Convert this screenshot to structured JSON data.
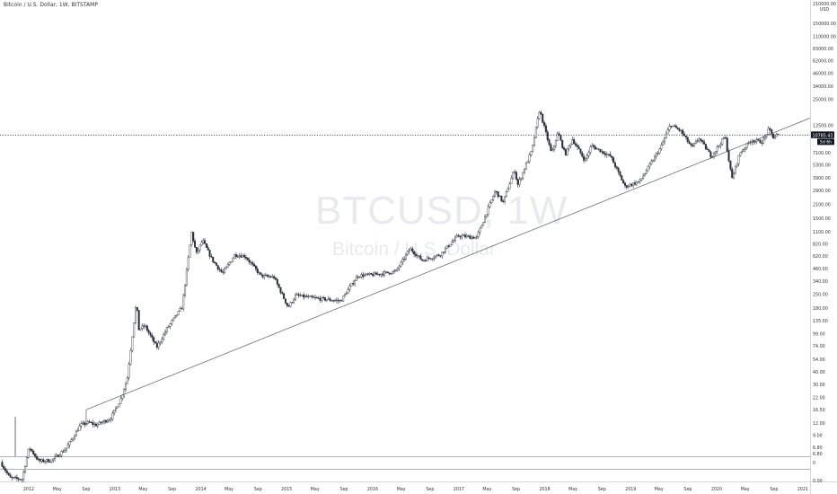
{
  "header": {
    "title": "Bitcoin / U.S. Dollar, 1W, BITSTAMP"
  },
  "watermark": {
    "symbol": "BTCUSD, 1W",
    "description": "Bitcoin / U.S. Dollar"
  },
  "colors": {
    "candle": "#2a2e39",
    "green_mark": "#26a69a",
    "price_label_bg": "#131722",
    "trendline": "#555b66",
    "hline": "#2a2e39"
  },
  "price_axis": {
    "top_labels": [
      "210000.00",
      "USD"
    ],
    "sub_panel_labels": [
      "6.80",
      "0",
      "0.00"
    ]
  },
  "price_label": {
    "value": "10785.43",
    "countdown": "5d 6h"
  },
  "chart_data": {
    "type": "candlestick",
    "title": "Bitcoin / U.S. Dollar, 1W, BITSTAMP",
    "scale": "log",
    "ylim": [
      5.5,
      230000
    ],
    "xrange": [
      "2011-09-01",
      "2021-02-01"
    ],
    "y_ticks": [
      150000,
      110000,
      83000,
      62000,
      46000,
      34000,
      25000,
      13500,
      7100,
      5300,
      3900,
      2900,
      2100,
      1500,
      1100,
      820,
      620,
      460,
      340,
      250,
      180,
      135,
      99,
      74,
      54,
      40,
      30,
      22,
      16.5,
      12,
      9,
      6.8
    ],
    "y_tick_labels": [
      "150000.00",
      "110000.00",
      "83000.00",
      "62000.00",
      "46000.00",
      "34000.00",
      "25000.00",
      "13500.00",
      "7100.00",
      "5300.00",
      "3900.00",
      "2900.00",
      "2100.00",
      "1500.00",
      "1100.00",
      "820.00",
      "620.00",
      "460.00",
      "340.00",
      "250.00",
      "180.00",
      "135.00",
      "99.00",
      "74.00",
      "54.00",
      "40.00",
      "30.00",
      "22.00",
      "16.50",
      "12.00",
      "9.00",
      "6.80"
    ],
    "x_ticks": [
      {
        "label": "2012",
        "date": "2012-01-01"
      },
      {
        "label": "May",
        "date": "2012-05-01"
      },
      {
        "label": "Sep",
        "date": "2012-09-01"
      },
      {
        "label": "2013",
        "date": "2013-01-01"
      },
      {
        "label": "May",
        "date": "2013-05-01"
      },
      {
        "label": "Sep",
        "date": "2013-09-01"
      },
      {
        "label": "2014",
        "date": "2014-01-01"
      },
      {
        "label": "May",
        "date": "2014-05-01"
      },
      {
        "label": "Sep",
        "date": "2014-09-01"
      },
      {
        "label": "2015",
        "date": "2015-01-01"
      },
      {
        "label": "May",
        "date": "2015-05-01"
      },
      {
        "label": "Sep",
        "date": "2015-09-01"
      },
      {
        "label": "2016",
        "date": "2016-01-01"
      },
      {
        "label": "May",
        "date": "2016-05-01"
      },
      {
        "label": "Sep",
        "date": "2016-09-01"
      },
      {
        "label": "2017",
        "date": "2017-01-01"
      },
      {
        "label": "May",
        "date": "2017-05-01"
      },
      {
        "label": "Sep",
        "date": "2017-09-01"
      },
      {
        "label": "2018",
        "date": "2018-01-01"
      },
      {
        "label": "May",
        "date": "2018-05-01"
      },
      {
        "label": "Sep",
        "date": "2018-09-01"
      },
      {
        "label": "2019",
        "date": "2019-01-01"
      },
      {
        "label": "May",
        "date": "2019-05-01"
      },
      {
        "label": "Sep",
        "date": "2019-09-01"
      },
      {
        "label": "2020",
        "date": "2020-01-01"
      },
      {
        "label": "May",
        "date": "2020-05-01"
      },
      {
        "label": "Sep",
        "date": "2020-09-01"
      },
      {
        "label": "2021",
        "date": "2021-01-01"
      }
    ],
    "price_path": [
      {
        "date": "2011-09-10",
        "price": 4.8
      },
      {
        "date": "2011-10-20",
        "price": 3.3
      },
      {
        "date": "2011-12-10",
        "price": 3.2
      },
      {
        "date": "2012-01-10",
        "price": 6.8
      },
      {
        "date": "2012-02-20",
        "price": 4.9
      },
      {
        "date": "2012-04-15",
        "price": 5.0
      },
      {
        "date": "2012-06-15",
        "price": 6.6
      },
      {
        "date": "2012-08-15",
        "price": 11.5
      },
      {
        "date": "2012-09-20",
        "price": 12.2
      },
      {
        "date": "2012-10-20",
        "price": 11.5
      },
      {
        "date": "2012-12-20",
        "price": 13.4
      },
      {
        "date": "2013-02-01",
        "price": 21
      },
      {
        "date": "2013-03-01",
        "price": 34
      },
      {
        "date": "2013-04-09",
        "price": 210
      },
      {
        "date": "2013-04-20",
        "price": 110
      },
      {
        "date": "2013-05-15",
        "price": 120
      },
      {
        "date": "2013-07-05",
        "price": 72
      },
      {
        "date": "2013-08-20",
        "price": 115
      },
      {
        "date": "2013-10-20",
        "price": 185
      },
      {
        "date": "2013-11-30",
        "price": 1080
      },
      {
        "date": "2013-12-20",
        "price": 650
      },
      {
        "date": "2014-01-15",
        "price": 900
      },
      {
        "date": "2014-02-25",
        "price": 570
      },
      {
        "date": "2014-04-10",
        "price": 410
      },
      {
        "date": "2014-06-01",
        "price": 640
      },
      {
        "date": "2014-07-15",
        "price": 620
      },
      {
        "date": "2014-09-20",
        "price": 390
      },
      {
        "date": "2014-11-15",
        "price": 375
      },
      {
        "date": "2015-01-14",
        "price": 185
      },
      {
        "date": "2015-02-15",
        "price": 245
      },
      {
        "date": "2015-05-01",
        "price": 230
      },
      {
        "date": "2015-08-25",
        "price": 215
      },
      {
        "date": "2015-11-05",
        "price": 390
      },
      {
        "date": "2016-01-15",
        "price": 400
      },
      {
        "date": "2016-04-15",
        "price": 430
      },
      {
        "date": "2016-06-15",
        "price": 740
      },
      {
        "date": "2016-08-05",
        "price": 560
      },
      {
        "date": "2016-10-20",
        "price": 640
      },
      {
        "date": "2017-01-04",
        "price": 1000
      },
      {
        "date": "2017-03-25",
        "price": 960
      },
      {
        "date": "2017-06-12",
        "price": 2900
      },
      {
        "date": "2017-07-15",
        "price": 2200
      },
      {
        "date": "2017-09-01",
        "price": 4800
      },
      {
        "date": "2017-09-15",
        "price": 3300
      },
      {
        "date": "2017-11-15",
        "price": 7600
      },
      {
        "date": "2017-12-17",
        "price": 19600
      },
      {
        "date": "2018-02-06",
        "price": 6900
      },
      {
        "date": "2018-03-05",
        "price": 11400
      },
      {
        "date": "2018-04-05",
        "price": 6800
      },
      {
        "date": "2018-05-05",
        "price": 9800
      },
      {
        "date": "2018-06-28",
        "price": 5900
      },
      {
        "date": "2018-07-25",
        "price": 8400
      },
      {
        "date": "2018-10-15",
        "price": 6500
      },
      {
        "date": "2018-12-15",
        "price": 3200
      },
      {
        "date": "2019-02-15",
        "price": 3600
      },
      {
        "date": "2019-05-15",
        "price": 8000
      },
      {
        "date": "2019-06-26",
        "price": 13800
      },
      {
        "date": "2019-08-10",
        "price": 11800
      },
      {
        "date": "2019-09-25",
        "price": 8000
      },
      {
        "date": "2019-10-26",
        "price": 10000
      },
      {
        "date": "2019-12-17",
        "price": 6500
      },
      {
        "date": "2020-02-13",
        "price": 10500
      },
      {
        "date": "2020-03-13",
        "price": 3800
      },
      {
        "date": "2020-04-15",
        "price": 7000
      },
      {
        "date": "2020-06-01",
        "price": 9500
      },
      {
        "date": "2020-07-20",
        "price": 9200
      },
      {
        "date": "2020-08-17",
        "price": 12400
      },
      {
        "date": "2020-09-05",
        "price": 10200
      },
      {
        "date": "2020-09-20",
        "price": 10785
      }
    ],
    "trendline": [
      {
        "date": "2012-09-01",
        "price": 16.5
      },
      {
        "date": "2021-01-15",
        "price": 15500
      }
    ],
    "current_price": 10785.43,
    "last_candle_date": "2020-09-20",
    "grid": false
  }
}
